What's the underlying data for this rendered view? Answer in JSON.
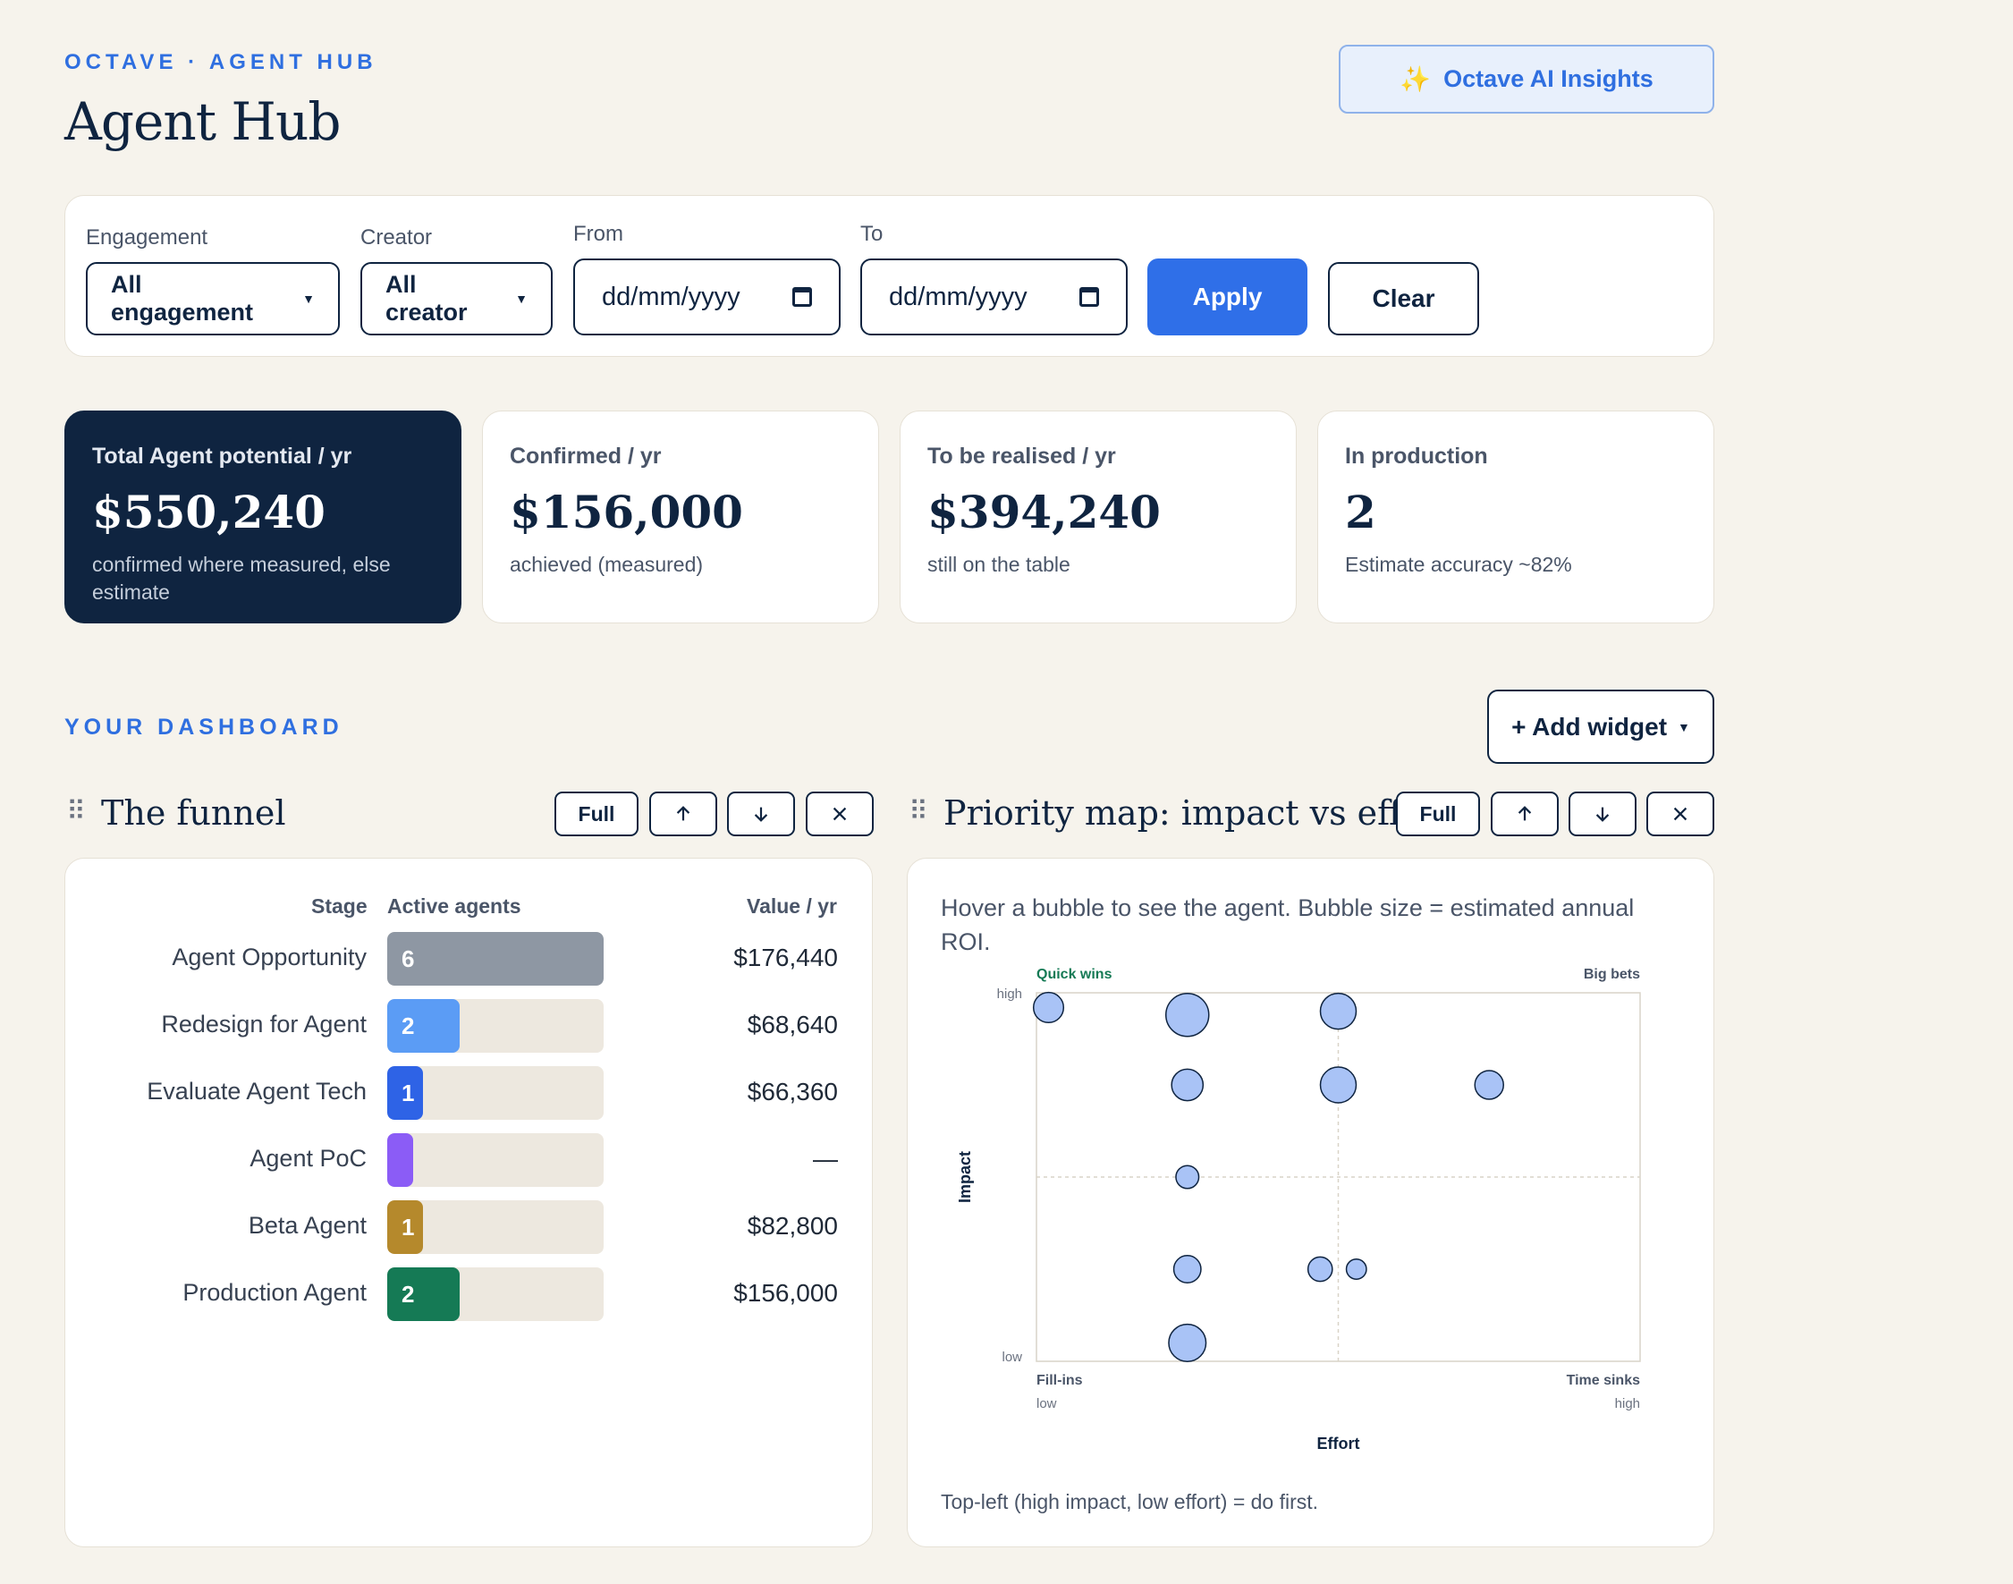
{
  "header": {
    "eyebrow": "OCTAVE · AGENT HUB",
    "title": "Agent Hub",
    "ai_button_label": "Octave AI Insights",
    "ai_button_icon": "sparkles-icon"
  },
  "filters": {
    "engagement": {
      "label": "Engagement",
      "value": "All engagement"
    },
    "creator": {
      "label": "Creator",
      "value": "All creator"
    },
    "from": {
      "label": "From",
      "placeholder": "dd/mm/yyyy"
    },
    "to": {
      "label": "To",
      "placeholder": "dd/mm/yyyy"
    },
    "apply_label": "Apply",
    "clear_label": "Clear"
  },
  "kpis": [
    {
      "label": "Total Agent potential / yr",
      "value": "$550,240",
      "sub": "confirmed where measured, else estimate"
    },
    {
      "label": "Confirmed / yr",
      "value": "$156,000",
      "sub": "achieved (measured)"
    },
    {
      "label": "To be realised / yr",
      "value": "$394,240",
      "sub": "still on the table"
    },
    {
      "label": "In production",
      "value": "2",
      "sub": "Estimate accuracy ~82%"
    }
  ],
  "dashboard": {
    "eyebrow": "YOUR DASHBOARD",
    "add_widget_label": "+ Add widget"
  },
  "funnel": {
    "title": "The funnel",
    "full_label": "Full",
    "headers": {
      "stage": "Stage",
      "agents": "Active agents",
      "value": "Value / yr"
    },
    "rows": [
      {
        "stage": "Agent Opportunity",
        "count": "6",
        "fill": 1.0,
        "color": "#8e97a3",
        "value": "$176,440"
      },
      {
        "stage": "Redesign for Agent",
        "count": "2",
        "fill": 0.333,
        "color": "#5b9cf5",
        "value": "$68,640"
      },
      {
        "stage": "Evaluate Agent Tech",
        "count": "1",
        "fill": 0.167,
        "color": "#2e63e6",
        "value": "$66,360"
      },
      {
        "stage": "Agent PoC",
        "count": "",
        "fill": 0.12,
        "color": "#8b5cf6",
        "value": "—"
      },
      {
        "stage": "Beta Agent",
        "count": "1",
        "fill": 0.167,
        "color": "#b5892c",
        "value": "$82,800"
      },
      {
        "stage": "Production Agent",
        "count": "2",
        "fill": 0.333,
        "color": "#157a55",
        "value": "$156,000"
      }
    ]
  },
  "priority_map": {
    "title": "Priority map: impact vs effort",
    "full_label": "Full",
    "description": "Hover a bubble to see the agent. Bubble size = estimated annual ROI.",
    "quadrants": {
      "top_left": "Quick wins",
      "top_right": "Big bets",
      "bottom_left": "Fill-ins",
      "bottom_right": "Time sinks"
    },
    "y_axis": {
      "label": "Impact",
      "high": "high",
      "low": "low"
    },
    "x_axis": {
      "label": "Effort",
      "low": "low",
      "high": "high"
    },
    "quick_wins_color": "#157a55",
    "footer": "Top-left (high impact, low effort) = do first."
  },
  "chart_data": {
    "type": "scatter",
    "x_label": "Effort",
    "y_label": "Impact",
    "xlim": [
      0,
      1
    ],
    "ylim": [
      0,
      1
    ],
    "grid": true,
    "points": [
      {
        "x": 0.02,
        "y": 0.96,
        "size": 0.55
      },
      {
        "x": 0.25,
        "y": 0.94,
        "size": 1.0
      },
      {
        "x": 0.5,
        "y": 0.95,
        "size": 0.75
      },
      {
        "x": 0.25,
        "y": 0.75,
        "size": 0.6
      },
      {
        "x": 0.5,
        "y": 0.75,
        "size": 0.75
      },
      {
        "x": 0.75,
        "y": 0.75,
        "size": 0.5
      },
      {
        "x": 0.25,
        "y": 0.5,
        "size": 0.3
      },
      {
        "x": 0.25,
        "y": 0.25,
        "size": 0.45
      },
      {
        "x": 0.47,
        "y": 0.25,
        "size": 0.35
      },
      {
        "x": 0.53,
        "y": 0.25,
        "size": 0.2
      },
      {
        "x": 0.25,
        "y": 0.05,
        "size": 0.8
      }
    ]
  }
}
